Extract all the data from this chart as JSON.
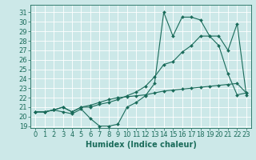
{
  "xlabel": "Humidex (Indice chaleur)",
  "bg_color": "#cce8e8",
  "grid_color": "#b0d0d0",
  "line_color": "#1a6b5a",
  "xlim": [
    -0.5,
    23.5
  ],
  "ylim": [
    18.8,
    31.8
  ],
  "yticks": [
    19,
    20,
    21,
    22,
    23,
    24,
    25,
    26,
    27,
    28,
    29,
    30,
    31
  ],
  "xticks": [
    0,
    1,
    2,
    3,
    4,
    5,
    6,
    7,
    8,
    9,
    10,
    11,
    12,
    13,
    14,
    15,
    16,
    17,
    18,
    19,
    20,
    21,
    22,
    23
  ],
  "line1_y": [
    20.5,
    20.5,
    20.7,
    20.5,
    20.3,
    20.8,
    19.8,
    19.0,
    19.0,
    19.2,
    21.0,
    21.5,
    22.2,
    23.5,
    31.0,
    28.5,
    30.5,
    30.5,
    30.2,
    28.5,
    27.5,
    24.5,
    22.3,
    22.5
  ],
  "line2_y": [
    20.5,
    20.5,
    20.7,
    21.0,
    20.5,
    21.0,
    21.0,
    21.3,
    21.5,
    21.8,
    22.2,
    22.6,
    23.2,
    24.2,
    25.5,
    25.8,
    26.8,
    27.5,
    28.5,
    28.5,
    28.5,
    27.0,
    29.8,
    22.3
  ],
  "line3_y": [
    20.5,
    20.5,
    20.7,
    21.0,
    20.5,
    21.0,
    21.2,
    21.5,
    21.8,
    22.0,
    22.1,
    22.2,
    22.3,
    22.5,
    22.7,
    22.8,
    22.9,
    23.0,
    23.1,
    23.2,
    23.3,
    23.4,
    23.5,
    22.5
  ],
  "markersize": 2.0,
  "linewidth": 0.8,
  "font_size": 6,
  "xlabel_fontsize": 7
}
